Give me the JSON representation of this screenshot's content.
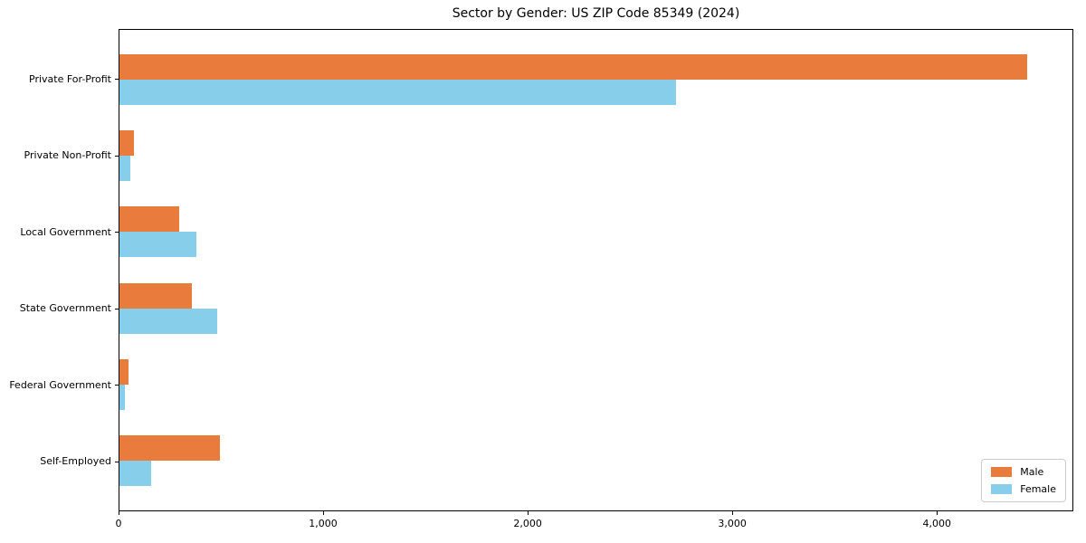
{
  "title": "Sector by Gender: US ZIP Code 85349 (2024)",
  "chart_data": {
    "type": "bar",
    "orientation": "horizontal",
    "title": "Sector by Gender: US ZIP Code 85349 (2024)",
    "categories": [
      "Private For-Profit",
      "Private Non-Profit",
      "Local Government",
      "State Government",
      "Federal Government",
      "Self-Employed"
    ],
    "series": [
      {
        "name": "Male",
        "color": "#E97C3C",
        "values": [
          4445,
          70,
          293,
          354,
          43,
          490
        ]
      },
      {
        "name": "Female",
        "color": "#87CEEB",
        "values": [
          2725,
          55,
          375,
          478,
          25,
          155
        ]
      }
    ],
    "xlabel": "",
    "ylabel": "",
    "xlim": [
      0,
      4667
    ],
    "xticks": [
      0,
      1000,
      2000,
      3000,
      4000
    ],
    "xtick_labels": [
      "0",
      "1,000",
      "2,000",
      "3,000",
      "4,000"
    ],
    "grid": false,
    "legend_position": "lower right",
    "bar_order_note": "Male bar on top, Female bar below, per category"
  },
  "legend": {
    "items": [
      {
        "label": "Male",
        "color": "#E97C3C"
      },
      {
        "label": "Female",
        "color": "#87CEEB"
      }
    ]
  }
}
